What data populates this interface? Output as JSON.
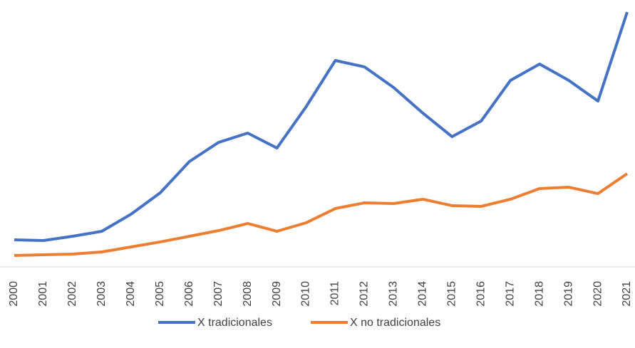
{
  "chart_data": {
    "type": "line",
    "categories": [
      "2000",
      "2001",
      "2002",
      "2003",
      "2004",
      "2005",
      "2006",
      "2007",
      "2008",
      "2009",
      "2010",
      "2011",
      "2012",
      "2013",
      "2014",
      "2015",
      "2016",
      "2017",
      "2018",
      "2019",
      "2020",
      "2021"
    ],
    "series": [
      {
        "name": "X tradicionales",
        "color": "#4472c4",
        "values": [
          4980,
          4850,
          5630,
          6550,
          9690,
          13620,
          19390,
          22920,
          24630,
          21880,
          29480,
          37990,
          36810,
          33010,
          28300,
          23970,
          26860,
          34320,
          37340,
          34320,
          30520,
          46900
        ]
      },
      {
        "name": "X no tradicionales",
        "color": "#ed7d31",
        "values": [
          2100,
          2230,
          2360,
          2750,
          3670,
          4590,
          5630,
          6680,
          7990,
          6550,
          8120,
          10740,
          11790,
          11660,
          12450,
          11270,
          11140,
          12450,
          14410,
          14670,
          13490,
          17160
        ]
      }
    ],
    "ylim": [
      0,
      48000
    ],
    "legend": "bottom"
  }
}
